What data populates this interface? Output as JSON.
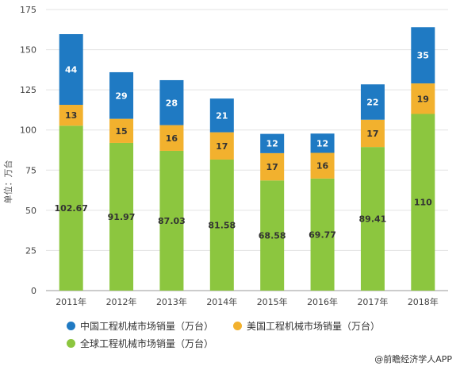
{
  "chart_data": {
    "type": "bar",
    "stacked": true,
    "ylabel": "单位：万台",
    "ylim": [
      0,
      175
    ],
    "yticks": [
      0,
      25,
      50,
      75,
      100,
      125,
      150,
      175
    ],
    "categories": [
      "2011年",
      "2012年",
      "2013年",
      "2014年",
      "2015年",
      "2016年",
      "2017年",
      "2018年"
    ],
    "series": [
      {
        "name": "全球工程机械市场销量（万台）",
        "color": "#8cc63f",
        "values": [
          102.67,
          91.97,
          87.03,
          81.58,
          68.58,
          69.77,
          89.41,
          110
        ]
      },
      {
        "name": "美国工程机械市场销量（万台）",
        "color": "#f2b12e",
        "values": [
          13,
          15,
          16,
          17,
          17,
          16,
          17,
          19
        ]
      },
      {
        "name": "中国工程机械市场销量（万台）",
        "color": "#1f7ac3",
        "values": [
          44,
          29,
          28,
          21,
          12,
          12,
          22,
          35
        ]
      }
    ],
    "labels": [
      [
        "102.67",
        "91.97",
        "87.03",
        "81.58",
        "68.58",
        "69.77",
        "89.41",
        "110"
      ],
      [
        "13",
        "15",
        "16",
        "17",
        "17",
        "16",
        "17",
        "19"
      ],
      [
        "44",
        "29",
        "28",
        "21",
        "12",
        "12",
        "22",
        "35"
      ]
    ],
    "legend": {
      "china": "中国工程机械市场销量（万台）",
      "us": "美国工程机械市场销量（万台）",
      "global": "全球工程机械市场销量（万台）"
    },
    "legend_colors": {
      "china": "#1f7ac3",
      "us": "#f2b12e",
      "global": "#8cc63f"
    },
    "source": "@前瞻经济学人APP"
  }
}
